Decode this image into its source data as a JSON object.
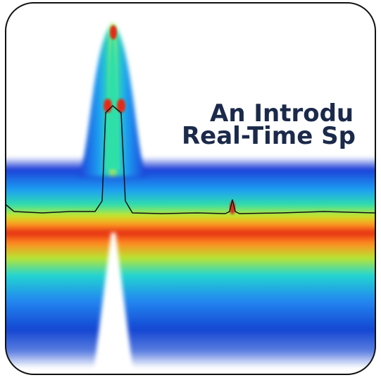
{
  "title": {
    "line1": "An Introdu",
    "line2": "Real-Time Sp"
  }
}
